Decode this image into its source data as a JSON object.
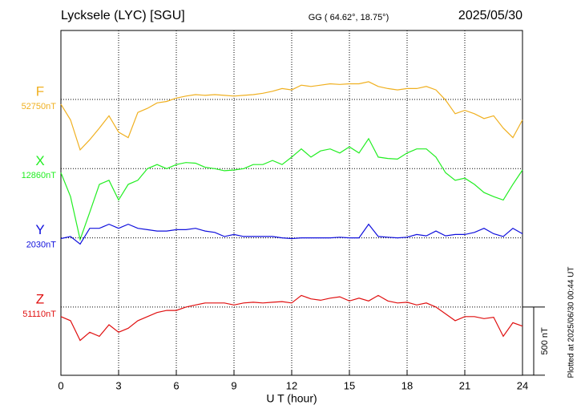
{
  "chart_data": {
    "type": "line",
    "title": "Lycksele (LYC)  [SGU]",
    "subtitle": "GG ( 64.62°,  18.75°)",
    "date": "2025/05/30",
    "x_label": "U T (hour)",
    "plotted_note": "Plotted at 2025/06/30 00:44 UT",
    "scale_bar": {
      "value": 500,
      "label": "500 nT"
    },
    "xlim": [
      0,
      24
    ],
    "xticks": [
      0,
      3,
      6,
      9,
      12,
      15,
      18,
      21,
      24
    ],
    "grid": true,
    "x": [
      0,
      0.5,
      1,
      1.5,
      2,
      2.5,
      3,
      3.5,
      4,
      4.5,
      5,
      5.5,
      6,
      6.5,
      7,
      7.5,
      8,
      8.5,
      9,
      9.5,
      10,
      10.5,
      11,
      11.5,
      12,
      12.5,
      13,
      13.5,
      14,
      14.5,
      15,
      15.5,
      16,
      16.5,
      17,
      17.5,
      18,
      18.5,
      19,
      19.5,
      20,
      20.5,
      21,
      21.5,
      22,
      22.5,
      23,
      23.5,
      24
    ],
    "series": [
      {
        "name": "F",
        "color": "#f0b020",
        "baseline": {
          "value": 52750,
          "label": "52750nT"
        },
        "values": [
          52715,
          52600,
          52380,
          52455,
          52540,
          52630,
          52510,
          52470,
          52655,
          52685,
          52725,
          52735,
          52760,
          52775,
          52785,
          52780,
          52785,
          52780,
          52775,
          52780,
          52785,
          52795,
          52810,
          52830,
          52820,
          52855,
          52845,
          52855,
          52865,
          52860,
          52865,
          52865,
          52880,
          52845,
          52830,
          52820,
          52830,
          52830,
          52845,
          52820,
          52745,
          52645,
          52670,
          52645,
          52610,
          52630,
          52540,
          52470,
          52600
        ]
      },
      {
        "name": "X",
        "color": "#22ee22",
        "baseline": {
          "value": 12860,
          "label": "12860nT"
        },
        "values": [
          12830,
          12655,
          12340,
          12540,
          12745,
          12775,
          12630,
          12745,
          12775,
          12860,
          12890,
          12860,
          12890,
          12905,
          12900,
          12870,
          12860,
          12845,
          12850,
          12860,
          12890,
          12890,
          12920,
          12890,
          12945,
          13005,
          12945,
          12990,
          13005,
          12975,
          13020,
          12975,
          13080,
          12945,
          12935,
          12930,
          12975,
          13005,
          13005,
          12945,
          12830,
          12775,
          12790,
          12745,
          12685,
          12655,
          12630,
          12745,
          12850
        ]
      },
      {
        "name": "Y",
        "color": "#1010dd",
        "baseline": {
          "value": 2030,
          "label": "2030nT"
        },
        "values": [
          2025,
          2040,
          1985,
          2100,
          2100,
          2130,
          2100,
          2130,
          2100,
          2090,
          2080,
          2080,
          2090,
          2090,
          2100,
          2080,
          2070,
          2040,
          2055,
          2040,
          2040,
          2040,
          2040,
          2030,
          2025,
          2030,
          2030,
          2030,
          2030,
          2035,
          2030,
          2030,
          2130,
          2040,
          2035,
          2030,
          2035,
          2055,
          2045,
          2080,
          2045,
          2055,
          2055,
          2070,
          2100,
          2060,
          2040,
          2100,
          2060
        ]
      },
      {
        "name": "Z",
        "color": "#e01010",
        "baseline": {
          "value": 51110,
          "label": "51110nT"
        },
        "values": [
          51040,
          51010,
          50865,
          50925,
          50895,
          50980,
          50925,
          50955,
          51010,
          51040,
          51070,
          51085,
          51085,
          51110,
          51125,
          51140,
          51140,
          51140,
          51125,
          51140,
          51145,
          51140,
          51145,
          51150,
          51140,
          51195,
          51170,
          51160,
          51175,
          51185,
          51155,
          51175,
          51155,
          51195,
          51155,
          51140,
          51145,
          51125,
          51140,
          51110,
          51060,
          51010,
          51040,
          51040,
          51025,
          51035,
          50895,
          50995,
          50970
        ]
      }
    ]
  }
}
